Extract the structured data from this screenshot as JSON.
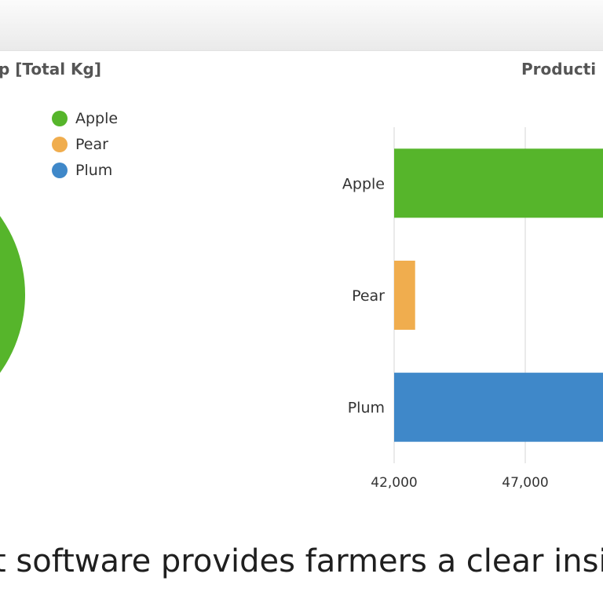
{
  "header": {
    "caption": "t software provides farmers a clear insig"
  },
  "chart_data": [
    {
      "type": "pie",
      "title": "p [Total Kg]",
      "legend": [
        "Apple",
        "Pear",
        "Plum"
      ],
      "legend_position": "top-right",
      "colors": [
        "#56b52b",
        "#f0ad4e",
        "#3f88c9"
      ],
      "visible_slices": [
        {
          "name": "Apple",
          "color": "#56b52b"
        }
      ]
    },
    {
      "type": "bar",
      "orientation": "horizontal",
      "title": "Producti",
      "categories": [
        "Apple",
        "Pear",
        "Plum"
      ],
      "values": [
        51000,
        42800,
        51000
      ],
      "colors": [
        "#56b52b",
        "#f0ad4e",
        "#3f88c9"
      ],
      "x_ticks": [
        "42,000",
        "47,000"
      ],
      "xlim": [
        42000,
        51000
      ],
      "grid": true
    }
  ]
}
